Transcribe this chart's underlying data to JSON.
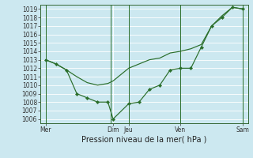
{
  "xlabel": "Pression niveau de la mer( hPa )",
  "bg_color": "#cce8f0",
  "grid_color": "#aaccdd",
  "line_color": "#2a6e2a",
  "ylim": [
    1005.5,
    1019.5
  ],
  "yticks": [
    1006,
    1007,
    1008,
    1009,
    1010,
    1011,
    1012,
    1013,
    1014,
    1015,
    1016,
    1017,
    1018,
    1019
  ],
  "xlim": [
    0,
    20
  ],
  "xtick_labels": [
    "Mer",
    "Dim",
    "Jeu",
    "Ven",
    "Sam"
  ],
  "xtick_positions": [
    0.5,
    7.0,
    8.5,
    13.5,
    19.5
  ],
  "vline_positions": [
    0.5,
    6.8,
    8.5,
    13.5,
    19.5
  ],
  "line1_x": [
    0.5,
    1.5,
    2.5,
    3.5,
    4.5,
    5.5,
    6.5,
    7.0,
    7.5,
    8.0,
    8.5,
    9.5,
    10.5,
    11.5,
    12.5,
    13.5,
    14.5,
    15.5,
    16.5,
    17.5,
    18.5,
    19.5
  ],
  "line1_y": [
    1013.0,
    1012.5,
    1011.8,
    1011.0,
    1010.3,
    1010.0,
    1010.2,
    1010.5,
    1011.0,
    1011.5,
    1012.0,
    1012.5,
    1013.0,
    1013.2,
    1013.8,
    1014.0,
    1014.3,
    1014.8,
    1017.0,
    1018.2,
    1019.2,
    1019.0
  ],
  "line2_x": [
    0.5,
    1.5,
    2.5,
    3.5,
    4.5,
    5.5,
    6.5,
    7.0,
    8.5,
    9.5,
    10.5,
    11.5,
    12.5,
    13.5,
    14.5,
    15.5,
    16.5,
    17.5,
    18.5,
    19.5
  ],
  "line2_y": [
    1013.0,
    1012.5,
    1011.8,
    1009.0,
    1008.5,
    1008.0,
    1008.0,
    1006.0,
    1007.8,
    1008.0,
    1009.5,
    1010.0,
    1011.8,
    1012.0,
    1012.0,
    1014.5,
    1017.0,
    1018.0,
    1019.2,
    1019.0
  ],
  "tick_font_size": 5.5,
  "xlabel_font_size": 7.0
}
